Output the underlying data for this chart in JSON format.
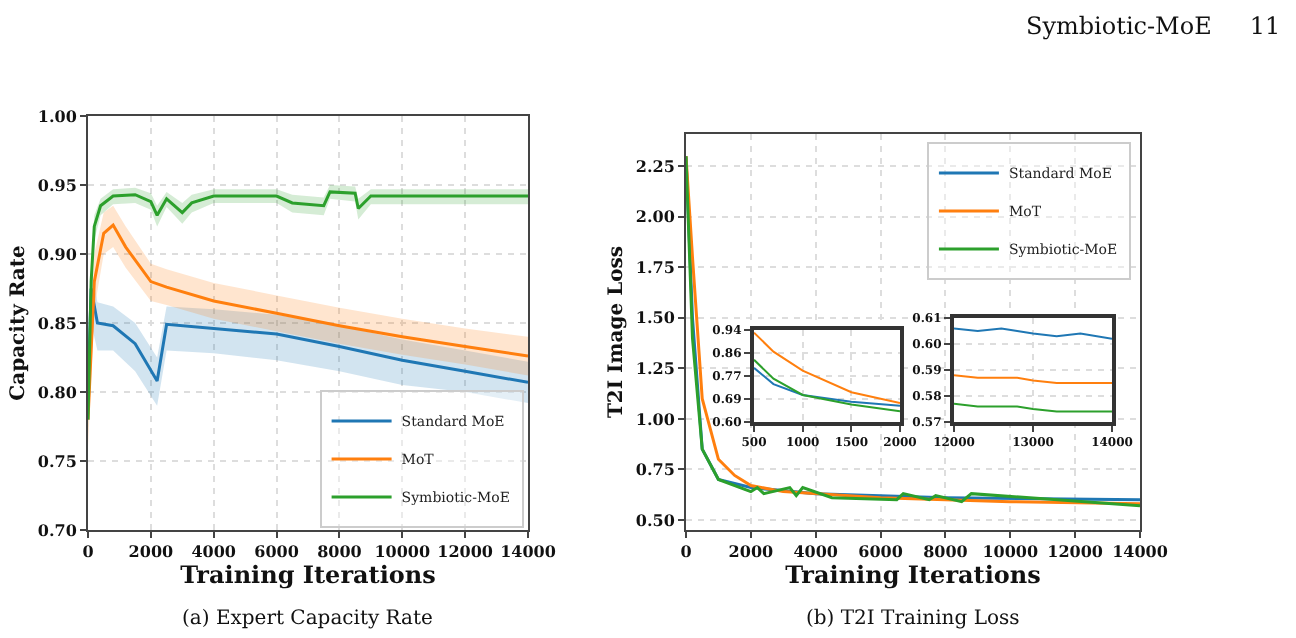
{
  "chart_data": [
    {
      "type": "line",
      "title": "(a) Expert Capacity Rate",
      "xlabel": "Training Iterations",
      "ylabel": "Capacity Rate",
      "xlim": [
        0,
        14000
      ],
      "xticks": [
        0,
        2000,
        4000,
        6000,
        8000,
        10000,
        12000,
        14000
      ],
      "ylim": [
        0.7,
        1.0
      ],
      "yticks": [
        {
          "value": 0.7,
          "label": "0.70"
        },
        {
          "value": 0.75,
          "label": "0.75"
        },
        {
          "value": 0.8,
          "label": "0.80"
        },
        {
          "value": 0.85,
          "label": "0.85"
        },
        {
          "value": 0.9,
          "label": "0.90"
        },
        {
          "value": 0.95,
          "label": "0.95"
        },
        {
          "value": 1.0,
          "label": "1.00"
        }
      ],
      "grid": true,
      "legend": "bottom right",
      "marker": "none",
      "line_style": "solid",
      "series": [
        {
          "name": "Standard MoE",
          "color": "#1f77b4",
          "x": [
            0,
            100,
            300,
            800,
            1500,
            2200,
            2500,
            4000,
            6000,
            8000,
            10000,
            12000,
            14000
          ],
          "values": [
            0.8,
            0.875,
            0.85,
            0.848,
            0.835,
            0.808,
            0.849,
            0.846,
            0.842,
            0.833,
            0.823,
            0.815,
            0.807
          ],
          "lower": [
            0.78,
            0.85,
            0.83,
            0.83,
            0.815,
            0.79,
            0.83,
            0.828,
            0.823,
            0.815,
            0.805,
            0.8,
            0.792
          ],
          "upper": [
            0.82,
            0.89,
            0.865,
            0.862,
            0.85,
            0.825,
            0.862,
            0.86,
            0.856,
            0.848,
            0.838,
            0.83,
            0.822
          ]
        },
        {
          "name": "MoT",
          "color": "#ff7f0e",
          "x": [
            0,
            200,
            500,
            800,
            1200,
            2000,
            2500,
            4000,
            6000,
            8000,
            10000,
            12000,
            14000
          ],
          "values": [
            0.78,
            0.88,
            0.915,
            0.921,
            0.905,
            0.88,
            0.876,
            0.866,
            0.857,
            0.848,
            0.84,
            0.833,
            0.826
          ],
          "lower": [
            0.76,
            0.86,
            0.9,
            0.905,
            0.89,
            0.866,
            0.863,
            0.853,
            0.844,
            0.835,
            0.827,
            0.82,
            0.812
          ],
          "upper": [
            0.8,
            0.9,
            0.93,
            0.935,
            0.92,
            0.893,
            0.889,
            0.879,
            0.87,
            0.861,
            0.853,
            0.846,
            0.84
          ]
        },
        {
          "name": "Symbiotic-MoE",
          "color": "#2ca02c",
          "x": [
            0,
            100,
            200,
            400,
            800,
            1500,
            2000,
            2200,
            2500,
            3000,
            3300,
            4000,
            6000,
            6500,
            7500,
            7700,
            8500,
            8600,
            9000,
            14000
          ],
          "values": [
            0.78,
            0.88,
            0.92,
            0.935,
            0.942,
            0.943,
            0.938,
            0.928,
            0.94,
            0.93,
            0.937,
            0.942,
            0.942,
            0.937,
            0.935,
            0.945,
            0.944,
            0.933,
            0.942,
            0.942
          ],
          "lower": [
            0.77,
            0.87,
            0.91,
            0.928,
            0.936,
            0.937,
            0.932,
            0.92,
            0.934,
            0.922,
            0.93,
            0.937,
            0.937,
            0.93,
            0.928,
            0.94,
            0.938,
            0.925,
            0.936,
            0.936
          ],
          "upper": [
            0.79,
            0.89,
            0.928,
            0.94,
            0.947,
            0.948,
            0.944,
            0.935,
            0.945,
            0.937,
            0.943,
            0.947,
            0.947,
            0.943,
            0.941,
            0.95,
            0.949,
            0.94,
            0.947,
            0.947
          ]
        }
      ]
    },
    {
      "type": "line",
      "title": "(b) T2I Training Loss",
      "xlabel": "Training Iterations",
      "ylabel": "T2I Image Loss",
      "annotations": [
        "Symbiotic-MoE     11"
      ],
      "xlim": [
        0,
        14000
      ],
      "xticks": [
        0,
        2000,
        4000,
        6000,
        8000,
        10000,
        12000,
        14000
      ],
      "ylim": [
        0.45,
        2.41
      ],
      "yticks": [
        {
          "value": 0.5,
          "label": "0.50"
        },
        {
          "value": 0.75,
          "label": "0.75"
        },
        {
          "value": 1.0,
          "label": "1.00"
        },
        {
          "value": 1.25,
          "label": "1.25"
        },
        {
          "value": 1.5,
          "label": "1.50"
        },
        {
          "value": 1.75,
          "label": "1.75"
        },
        {
          "value": 2.0,
          "label": "2.00"
        },
        {
          "value": 2.25,
          "label": "2.25"
        }
      ],
      "grid": true,
      "legend": "top right",
      "marker": "none",
      "line_style": "solid",
      "series": [
        {
          "name": "Standard MoE",
          "color": "#1f77b4",
          "x": [
            0,
            200,
            500,
            1000,
            2000,
            4000,
            8000,
            14000
          ],
          "values": [
            2.3,
            1.5,
            0.85,
            0.7,
            0.66,
            0.63,
            0.61,
            0.6
          ]
        },
        {
          "name": "MoT",
          "color": "#ff7f0e",
          "x": [
            0,
            200,
            500,
            1000,
            1500,
            2000,
            3000,
            6000,
            10000,
            14000
          ],
          "values": [
            2.3,
            1.8,
            1.1,
            0.8,
            0.72,
            0.67,
            0.64,
            0.61,
            0.59,
            0.58
          ]
        },
        {
          "name": "Symbiotic-MoE",
          "color": "#2ca02c",
          "x": [
            0,
            200,
            500,
            1000,
            2000,
            2200,
            2400,
            3200,
            3400,
            3600,
            4500,
            6500,
            6700,
            7500,
            7700,
            8500,
            8800,
            14000
          ],
          "values": [
            2.3,
            1.4,
            0.85,
            0.7,
            0.64,
            0.66,
            0.63,
            0.66,
            0.62,
            0.66,
            0.61,
            0.6,
            0.63,
            0.6,
            0.62,
            0.59,
            0.63,
            0.57
          ]
        }
      ]
    },
    {
      "type": "line",
      "xlim": [
        500,
        2000
      ],
      "xticks": [
        500,
        1000,
        1500,
        2000
      ],
      "ylim": [
        0.6,
        0.94
      ],
      "yticks": [
        {
          "value": 0.6,
          "label": "0.60"
        },
        {
          "value": 0.685,
          "label": "0.69"
        },
        {
          "value": 0.77,
          "label": "0.77"
        },
        {
          "value": 0.855,
          "label": "0.86"
        },
        {
          "value": 0.94,
          "label": "0.94"
        }
      ],
      "grid": true,
      "marker": "none",
      "line_style": "solid",
      "series": [
        {
          "color": "#1f77b4",
          "x": [
            500,
            700,
            1000,
            1500,
            2000
          ],
          "values": [
            0.8,
            0.74,
            0.7,
            0.675,
            0.66
          ]
        },
        {
          "color": "#ff7f0e",
          "x": [
            500,
            700,
            1000,
            1500,
            2000
          ],
          "values": [
            0.93,
            0.86,
            0.79,
            0.71,
            0.67
          ]
        },
        {
          "color": "#2ca02c",
          "x": [
            500,
            700,
            1000,
            1500,
            2000
          ],
          "values": [
            0.83,
            0.76,
            0.7,
            0.665,
            0.64
          ]
        }
      ]
    },
    {
      "type": "line",
      "xlim": [
        12000,
        14000
      ],
      "xticks": [
        12000,
        13000,
        14000
      ],
      "ylim": [
        0.57,
        0.61
      ],
      "yticks": [
        {
          "value": 0.57,
          "label": "0.57"
        },
        {
          "value": 0.58,
          "label": "0.58"
        },
        {
          "value": 0.59,
          "label": "0.59"
        },
        {
          "value": 0.6,
          "label": "0.60"
        },
        {
          "value": 0.61,
          "label": "0.61"
        }
      ],
      "grid": true,
      "marker": "none",
      "line_style": "solid",
      "series": [
        {
          "color": "#1f77b4",
          "x": [
            12000,
            12300,
            12600,
            12800,
            13000,
            13300,
            13600,
            14000
          ],
          "values": [
            0.606,
            0.605,
            0.606,
            0.605,
            0.604,
            0.603,
            0.604,
            0.602
          ]
        },
        {
          "color": "#ff7f0e",
          "x": [
            12000,
            12300,
            12600,
            12800,
            13000,
            13300,
            13600,
            14000
          ],
          "values": [
            0.588,
            0.587,
            0.587,
            0.587,
            0.586,
            0.585,
            0.585,
            0.585
          ]
        },
        {
          "color": "#2ca02c",
          "x": [
            12000,
            12300,
            12600,
            12800,
            13000,
            13300,
            13600,
            14000
          ],
          "values": [
            0.577,
            0.576,
            0.576,
            0.576,
            0.575,
            0.574,
            0.574,
            0.574
          ]
        }
      ]
    }
  ]
}
